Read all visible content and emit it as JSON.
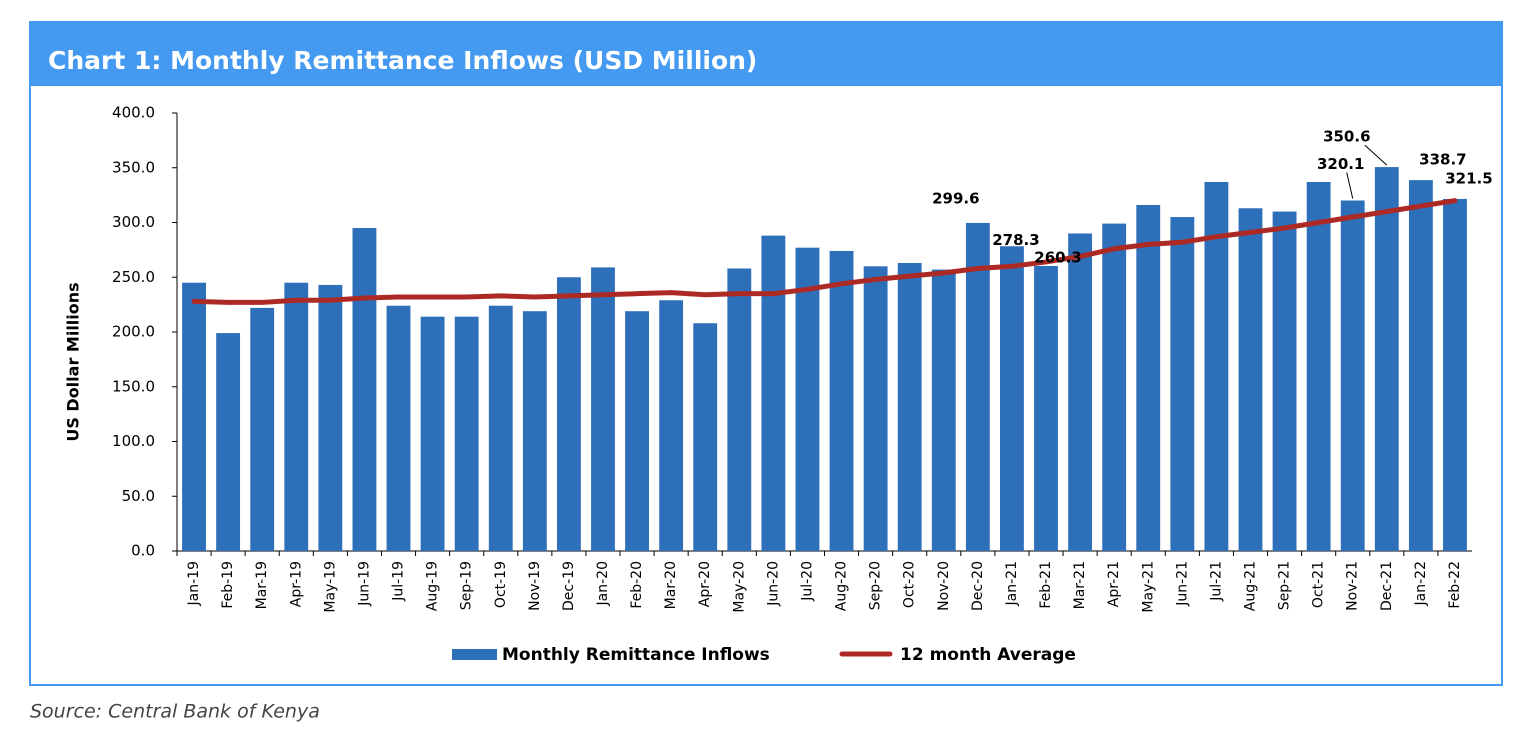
{
  "chart_data": {
    "type": "bar_line",
    "title": "Chart 1: Monthly Remittance Inflows (USD Million)",
    "y_label": "US Dollar Millions",
    "source": "Source: Central Bank of Kenya",
    "categories": [
      "Jan-19",
      "Feb-19",
      "Mar-19",
      "Apr-19",
      "May-19",
      "Jun-19",
      "Jul-19",
      "Aug-19",
      "Sep-19",
      "Oct-19",
      "Nov-19",
      "Dec-19",
      "Jan-20",
      "Feb-20",
      "Mar-20",
      "Apr-20",
      "May-20",
      "Jun-20",
      "Jul-20",
      "Aug-20",
      "Sep-20",
      "Oct-20",
      "Nov-20",
      "Dec-20",
      "Jan-21",
      "Feb-21",
      "Mar-21",
      "Apr-21",
      "May-21",
      "Jun-21",
      "Jul-21",
      "Aug-21",
      "Sep-21",
      "Oct-21",
      "Nov-21",
      "Dec-21",
      "Jan-22",
      "Feb-22"
    ],
    "series": [
      {
        "name": "Monthly Remittance Inflows",
        "type": "bar",
        "color": "#2e6fba",
        "values": [
          245,
          199,
          222,
          245,
          243,
          295,
          224,
          214,
          214,
          224,
          219,
          250,
          259,
          219,
          229,
          208,
          258,
          288,
          277,
          274,
          260,
          263,
          257,
          299.6,
          278.3,
          260.3,
          290,
          299,
          316,
          305,
          337,
          313,
          310,
          337,
          320.1,
          350.6,
          338.7,
          321.5
        ],
        "value_labels": [
          null,
          null,
          null,
          null,
          null,
          null,
          null,
          null,
          null,
          null,
          null,
          null,
          null,
          null,
          null,
          null,
          null,
          null,
          null,
          null,
          null,
          null,
          null,
          "299.6",
          "278.3",
          "260.3",
          null,
          null,
          null,
          null,
          null,
          null,
          null,
          null,
          "320.1",
          "350.6",
          "338.7",
          "321.5"
        ]
      },
      {
        "name": "12 month Average",
        "type": "line",
        "color": "#ad2a24",
        "values": [
          228,
          227,
          227,
          229,
          229,
          231,
          232,
          232,
          232,
          233,
          232,
          233,
          234,
          235,
          236,
          234,
          235,
          235,
          239,
          244,
          248,
          251,
          254,
          258,
          260,
          264,
          269,
          276,
          280,
          282,
          287,
          291,
          295,
          300,
          305,
          310,
          315,
          320
        ]
      }
    ],
    "ylim": [
      0,
      400
    ],
    "yticks": [
      {
        "value": 0,
        "label": "0.0"
      },
      {
        "value": 50,
        "label": "50.0"
      },
      {
        "value": 100,
        "label": "100.0"
      },
      {
        "value": 150,
        "label": "150.0"
      },
      {
        "value": 200,
        "label": "200.0"
      },
      {
        "value": 250,
        "label": "250.0"
      },
      {
        "value": 300,
        "label": "300.0"
      },
      {
        "value": 350,
        "label": "350.0"
      },
      {
        "value": 400,
        "label": "400.0"
      }
    ],
    "grid": false
  }
}
